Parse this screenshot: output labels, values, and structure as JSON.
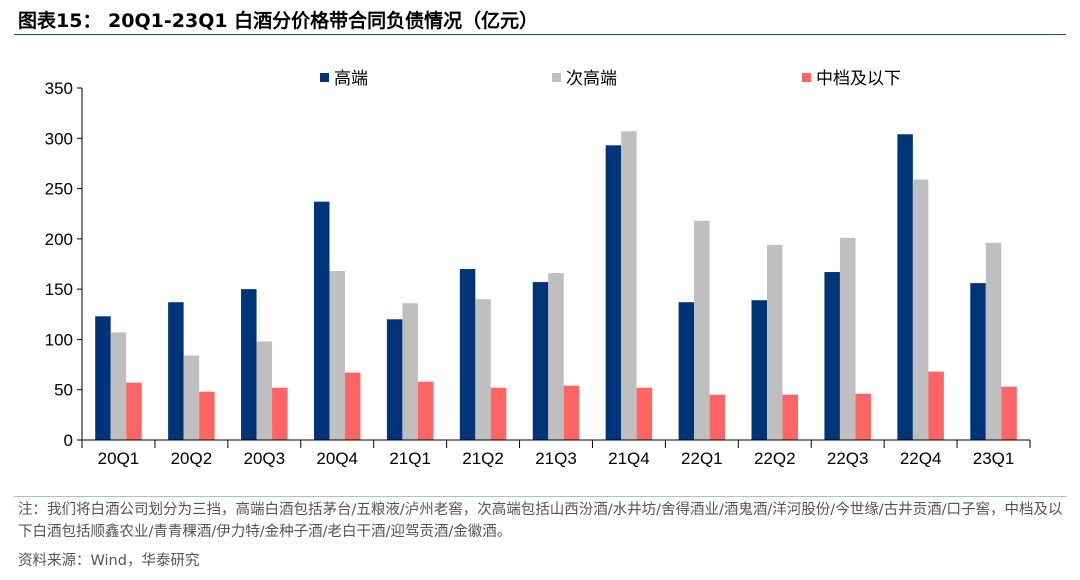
{
  "title": "图表15： 20Q1-23Q1 白酒分价格带合同负债情况（亿元）",
  "note": "注：我们将白酒公司划分为三挡，高端白酒包括茅台/五粮液/泸州老窖，次高端包括山西汾酒/水井坊/舍得酒业/酒鬼酒/洋河股份/今世缘/古井贡酒/口子窖，中档及以下白酒包括顺鑫农业/青青稞酒/伊力特/金种子酒/老白干酒/迎驾贡酒/金徽酒。",
  "source": "资料来源：Wind，华泰研究",
  "chart_data": {
    "type": "bar",
    "categories": [
      "20Q1",
      "20Q2",
      "20Q3",
      "20Q4",
      "21Q1",
      "21Q2",
      "21Q3",
      "21Q4",
      "22Q1",
      "22Q2",
      "22Q3",
      "22Q4",
      "23Q1"
    ],
    "series": [
      {
        "name": "高端",
        "color": "#003478",
        "values": [
          123,
          137,
          150,
          237,
          120,
          170,
          157,
          293,
          137,
          139,
          167,
          304,
          156
        ]
      },
      {
        "name": "次高端",
        "color": "#bfbfbf",
        "values": [
          107,
          84,
          98,
          168,
          136,
          140,
          166,
          307,
          218,
          194,
          201,
          259,
          196
        ]
      },
      {
        "name": "中档及以下",
        "color": "#ff6565",
        "values": [
          57,
          48,
          52,
          67,
          58,
          52,
          54,
          52,
          45,
          45,
          46,
          68,
          53
        ]
      }
    ],
    "ylim": [
      0,
      350
    ],
    "yticks": [
      0,
      50,
      100,
      150,
      200,
      250,
      300,
      350
    ],
    "legend": "top",
    "grid": false
  }
}
